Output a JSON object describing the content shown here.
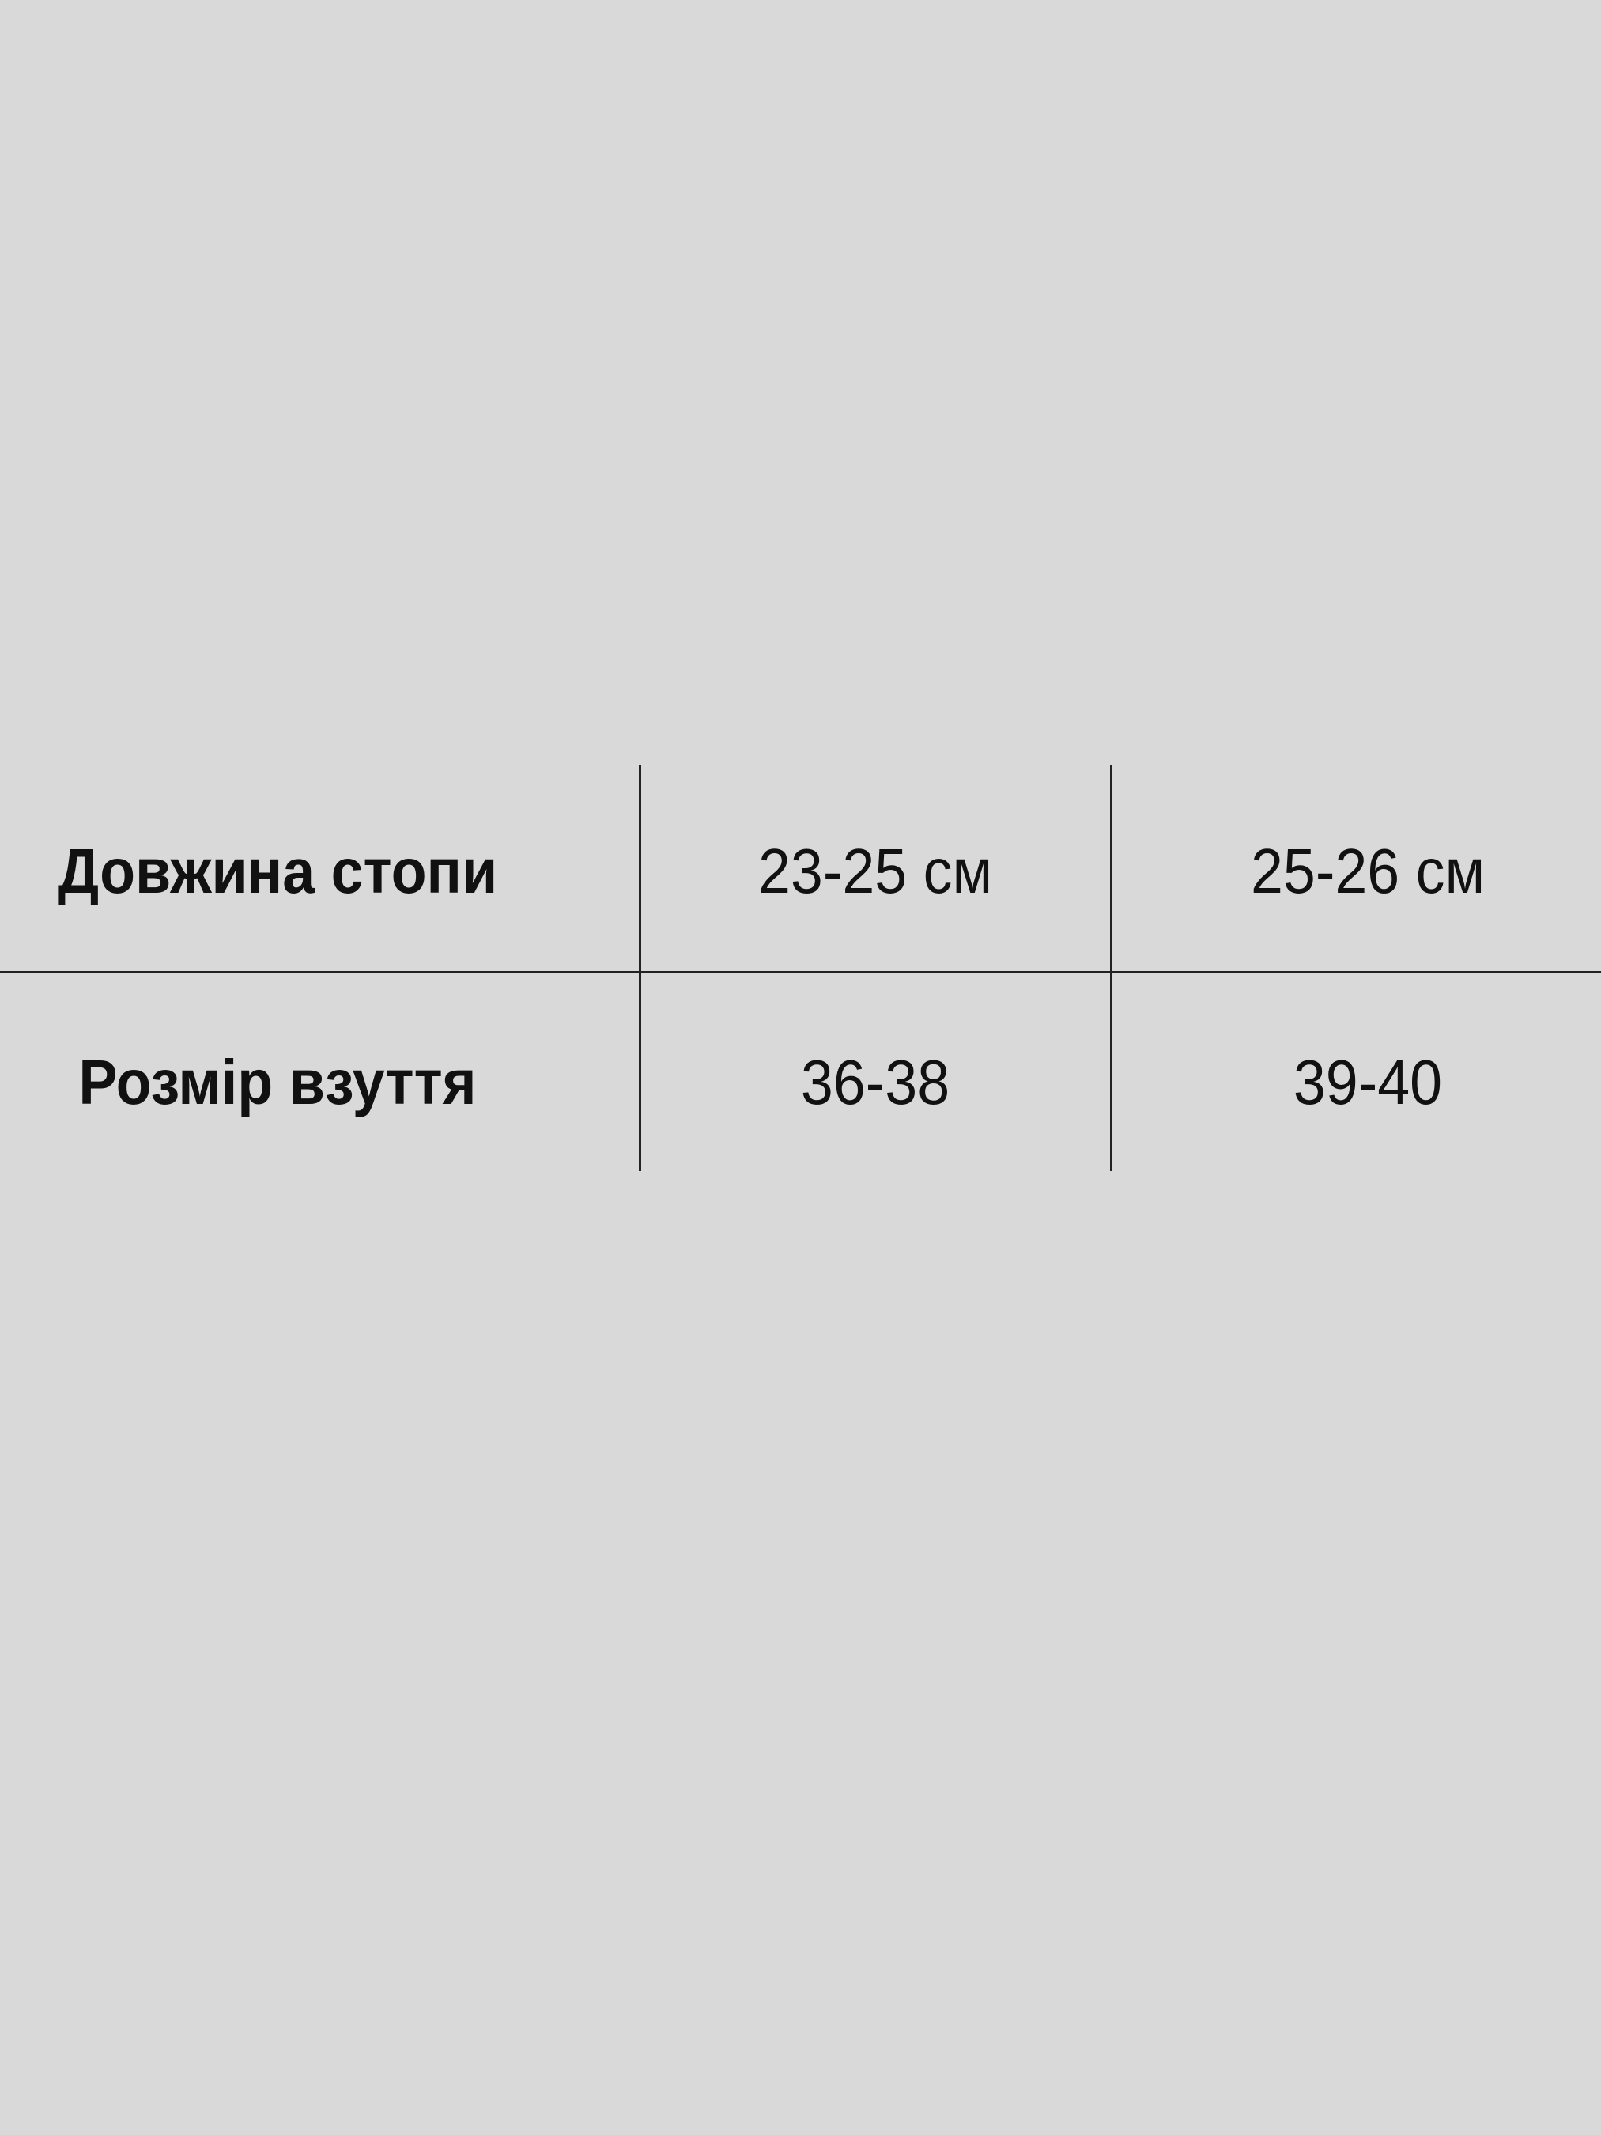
{
  "table": {
    "rows": [
      {
        "label": "Довжина стопи",
        "values": [
          "23-25 см",
          "25-26 см"
        ]
      },
      {
        "label": "Розмір взуття",
        "values": [
          "36-38",
          "39-40"
        ]
      }
    ]
  },
  "colors": {
    "background": "#d9d9d9",
    "lines": "#222222",
    "text": "#111111"
  }
}
